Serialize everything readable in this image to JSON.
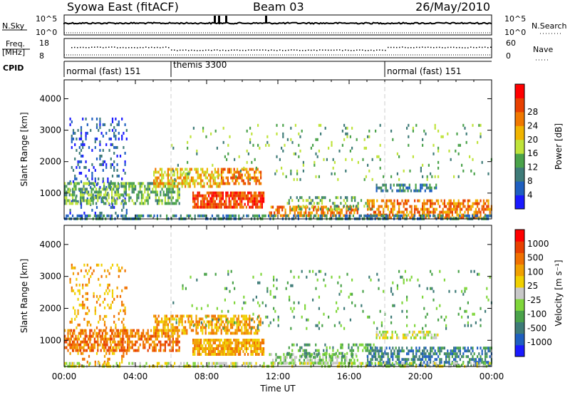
{
  "header": {
    "station": "Syowa East (fitACF)",
    "beam": "Beam 03",
    "date": "26/May/2010"
  },
  "top_panels": {
    "nsky_label": "N.Sky",
    "nsky_ticks": [
      "10^5",
      "10^0"
    ],
    "nsearch_label": "N.Search",
    "nsearch_ticks": [
      "10^5",
      "10^0"
    ],
    "freq_label_1": "Freq.",
    "freq_label_2": "[MHz]",
    "freq_ticks": [
      "18",
      "8"
    ],
    "nave_label": "Nave",
    "nave_ticks": [
      "60",
      "0"
    ],
    "cpid_label": "CPID",
    "cpid_segments": [
      {
        "label": "normal (fast) 151",
        "start_hour": 0,
        "end_hour": 6
      },
      {
        "label": "themis 3300",
        "start_hour": 6,
        "end_hour": 18
      },
      {
        "label": "normal (fast) 151",
        "start_hour": 18,
        "end_hour": 24
      }
    ]
  },
  "chart_data": [
    {
      "type": "heatmap",
      "name": "power",
      "ylabel": "Slant Range [km]",
      "yticks": [
        1000,
        2000,
        3000,
        4000
      ],
      "ylim": [
        180,
        4600
      ],
      "colorbar_label": "Power [dB]",
      "colorbar_ticks": [
        "4",
        "8",
        "12",
        "16",
        "20",
        "24",
        "28"
      ],
      "colors": [
        "#1a1aff",
        "#1f5fc0",
        "#3e7b78",
        "#4aa24a",
        "#bfe33a",
        "#f0b400",
        "#f07800",
        "#e84000",
        "#ff0000"
      ],
      "regions": [
        {
          "hours": [
            0.3,
            3.5
          ],
          "range": [
            250,
            3400
          ],
          "level": 1,
          "density": 0.18
        },
        {
          "hours": [
            0.0,
            6.5
          ],
          "range": [
            700,
            1350
          ],
          "level": 3,
          "density": 0.6
        },
        {
          "hours": [
            5.0,
            8.8
          ],
          "range": [
            1200,
            1800
          ],
          "level": 5,
          "density": 0.6
        },
        {
          "hours": [
            8.8,
            11.0
          ],
          "range": [
            1300,
            1800
          ],
          "level": 6,
          "density": 0.6
        },
        {
          "hours": [
            7.2,
            11.2
          ],
          "range": [
            550,
            1050
          ],
          "level": 7,
          "density": 0.8
        },
        {
          "hours": [
            11.5,
            16.5
          ],
          "range": [
            300,
            600
          ],
          "level": 6,
          "density": 0.55
        },
        {
          "hours": [
            12.5,
            17.5
          ],
          "range": [
            500,
            900
          ],
          "level": 3,
          "density": 0.35
        },
        {
          "hours": [
            17.0,
            24.0
          ],
          "range": [
            200,
            800
          ],
          "level": 6,
          "density": 0.55
        },
        {
          "hours": [
            17.5,
            21.0
          ],
          "range": [
            1050,
            1300
          ],
          "level": 2,
          "density": 0.55
        },
        {
          "hours": [
            0.0,
            24.0
          ],
          "range": [
            180,
            320
          ],
          "level": 2,
          "density": 0.5
        },
        {
          "hours": [
            6.0,
            24.0
          ],
          "range": [
            1400,
            3200
          ],
          "level": 3,
          "density": 0.05
        }
      ]
    },
    {
      "type": "heatmap",
      "name": "velocity",
      "ylabel": "Slant Range [km]",
      "xlabel": "Time UT",
      "xticks": [
        "00:00",
        "04:00",
        "08:00",
        "12:00",
        "16:00",
        "20:00",
        "00:00"
      ],
      "yticks": [
        1000,
        2000,
        3000,
        4000
      ],
      "ylim": [
        180,
        4600
      ],
      "colorbar_label": "Velocity [m s⁻¹]",
      "colorbar_ticks": [
        "1000",
        "500",
        "100",
        "25",
        "-25",
        "-100",
        "-500",
        "-1000"
      ],
      "colors": [
        "#1a1aff",
        "#1f5fc0",
        "#3e7b78",
        "#4aa24a",
        "#7fd63a",
        "#c8c8c8",
        "#f0d000",
        "#f0a000",
        "#f07000",
        "#e84000",
        "#ff0000"
      ],
      "regions": [
        {
          "hours": [
            0.3,
            3.5
          ],
          "range": [
            250,
            3400
          ],
          "level": 7,
          "density": 0.18
        },
        {
          "hours": [
            0.0,
            6.5
          ],
          "range": [
            700,
            1350
          ],
          "level": 8,
          "density": 0.6
        },
        {
          "hours": [
            5.0,
            11.0
          ],
          "range": [
            1200,
            1800
          ],
          "level": 7,
          "density": 0.6
        },
        {
          "hours": [
            7.2,
            11.2
          ],
          "range": [
            550,
            1050
          ],
          "level": 7,
          "density": 0.8
        },
        {
          "hours": [
            11.5,
            16.5
          ],
          "range": [
            300,
            600
          ],
          "level": 4,
          "density": 0.55
        },
        {
          "hours": [
            12.5,
            17.5
          ],
          "range": [
            500,
            900
          ],
          "level": 3,
          "density": 0.35
        },
        {
          "hours": [
            17.0,
            24.0
          ],
          "range": [
            200,
            800
          ],
          "level": 2,
          "density": 0.55
        },
        {
          "hours": [
            17.5,
            21.0
          ],
          "range": [
            1050,
            1300
          ],
          "level": 5,
          "density": 0.55
        },
        {
          "hours": [
            0.0,
            24.0
          ],
          "range": [
            180,
            320
          ],
          "level": 5,
          "density": 0.4
        },
        {
          "hours": [
            6.0,
            24.0
          ],
          "range": [
            1400,
            3200
          ],
          "level": 3,
          "density": 0.05
        }
      ]
    }
  ]
}
